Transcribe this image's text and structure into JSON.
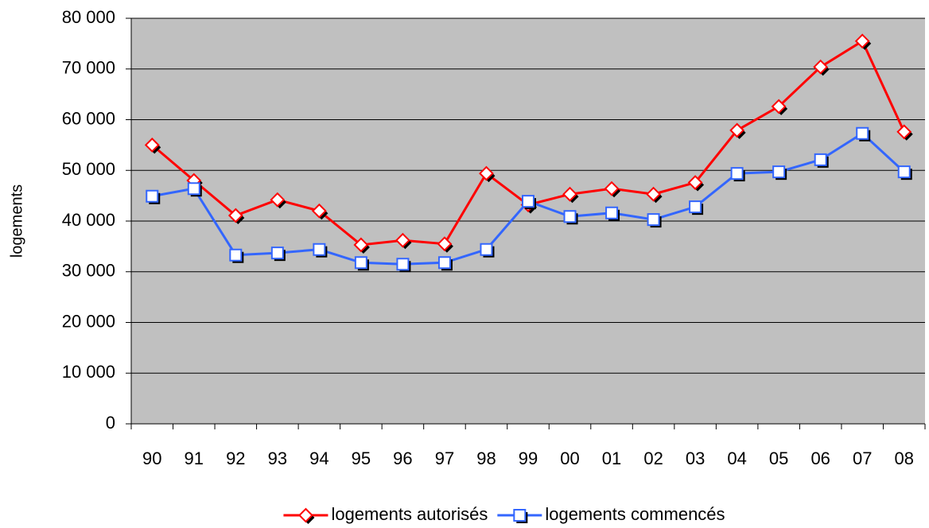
{
  "chart_data": {
    "type": "line",
    "y_label": "logements",
    "categories": [
      "90",
      "91",
      "92",
      "93",
      "94",
      "95",
      "96",
      "97",
      "98",
      "99",
      "00",
      "01",
      "02",
      "03",
      "04",
      "05",
      "06",
      "07",
      "08"
    ],
    "series": [
      {
        "name": "logements autorisés",
        "color": "#ff0000",
        "marker": "diamond",
        "values": [
          55000,
          48000,
          41100,
          44200,
          42000,
          35300,
          36200,
          35500,
          49400,
          43200,
          45300,
          46400,
          45300,
          47600,
          57900,
          62600,
          70400,
          75500,
          57600
        ]
      },
      {
        "name": "logements commencés",
        "color": "#3366ff",
        "marker": "square",
        "values": [
          44900,
          46400,
          33300,
          33700,
          34400,
          31800,
          31500,
          31800,
          34400,
          43900,
          40900,
          41600,
          40300,
          42800,
          49400,
          49700,
          52100,
          57300,
          49700
        ]
      }
    ],
    "ylim": [
      0,
      80000
    ],
    "yticks": [
      {
        "value": 0,
        "label": "0"
      },
      {
        "value": 10000,
        "label": "10 000"
      },
      {
        "value": 20000,
        "label": "20 000"
      },
      {
        "value": 30000,
        "label": "30 000"
      },
      {
        "value": 40000,
        "label": "40 000"
      },
      {
        "value": 50000,
        "label": "50 000"
      },
      {
        "value": 60000,
        "label": "60 000"
      },
      {
        "value": 70000,
        "label": "70 000"
      },
      {
        "value": 80000,
        "label": "80 000"
      }
    ],
    "grid": true,
    "plot_background": "#c0c0c0",
    "legend": "bottom"
  }
}
